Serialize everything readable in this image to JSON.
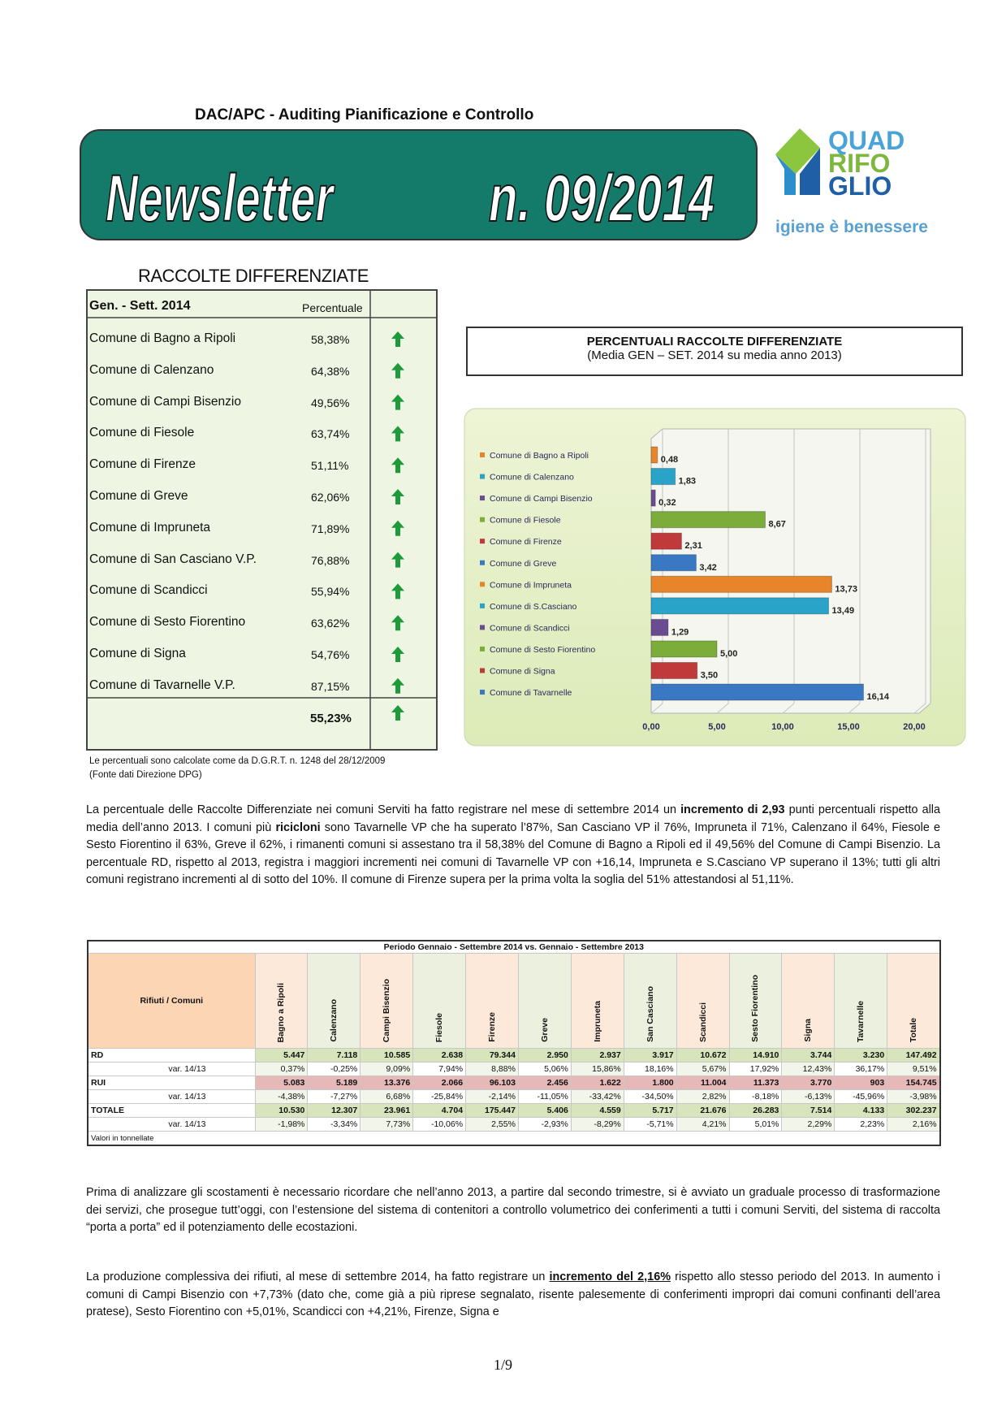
{
  "header": {
    "department": "DAC/APC - Auditing Pianificazione e Controllo",
    "newsletter": "Newsletter",
    "issue": "n. 09/2014",
    "logo": [
      "QUAD",
      "RIFO",
      "GLIO"
    ],
    "tagline": "igiene è benessere"
  },
  "rd_table": {
    "title": "RACCOLTE DIFFERENZIATE",
    "headers": [
      "Gen. - Sett. 2014",
      "Percentuale"
    ],
    "rows": [
      [
        "Comune di Bagno a Ripoli",
        "58,38%"
      ],
      [
        "Comune di Calenzano",
        "64,38%"
      ],
      [
        "Comune di Campi Bisenzio",
        "49,56%"
      ],
      [
        "Comune di Fiesole",
        "63,74%"
      ],
      [
        "Comune di Firenze",
        "51,11%"
      ],
      [
        "Comune di Greve",
        "62,06%"
      ],
      [
        "Comune di Impruneta",
        "71,89%"
      ],
      [
        "Comune di San Casciano V.P.",
        "76,88%"
      ],
      [
        "Comune di Scandicci",
        "55,94%"
      ],
      [
        "Comune di Sesto Fiorentino",
        "63,62%"
      ],
      [
        "Comune di Signa",
        "54,76%"
      ],
      [
        "Comune di Tavarnelle V.P.",
        "87,15%"
      ]
    ],
    "total": "55,23%",
    "notes": [
      "Le percentuali sono calcolate come da D.G.R.T. n. 1248 del 28/12/2009",
      "(Fonte dati Direzione DPG)"
    ]
  },
  "chart_data": {
    "type": "bar",
    "orientation": "horizontal",
    "title": "PERCENTUALI RACCOLTE DIFFERENZIATE",
    "subtitle": "(Media GEN – SET. 2014 su media anno 2013)",
    "categories": [
      "Comune di Bagno a Ripoli",
      "Comune di Calenzano",
      "Comune di Campi Bisenzio",
      "Comune di Fiesole",
      "Comune di Firenze",
      "Comune di Greve",
      "Comune di Impruneta",
      "Comune di S.Casciano",
      "Comune di Scandicci",
      "Comune di Sesto Fiorentino",
      "Comune di Signa",
      "Comune di Tavarnelle"
    ],
    "values": [
      0.48,
      1.83,
      0.32,
      8.67,
      2.31,
      3.42,
      13.73,
      13.49,
      1.29,
      5.0,
      3.5,
      16.14
    ],
    "value_labels": [
      "0,48",
      "1,83",
      "0,32",
      "8,67",
      "2,31",
      "3,42",
      "13,73",
      "13,49",
      "1,29",
      "5,00",
      "3,50",
      "16,14"
    ],
    "colors": [
      "#e8852a",
      "#2aa3c8",
      "#6a4c92",
      "#7cad3a",
      "#c0393b",
      "#3b78c4",
      "#e8852a",
      "#2aa3c8",
      "#6a4c92",
      "#7cad3a",
      "#c0393b",
      "#3b78c4"
    ],
    "xlim": [
      0,
      20
    ],
    "xticks": [
      {
        "value": 0,
        "label": "0,00"
      },
      {
        "value": 5,
        "label": "5,00"
      },
      {
        "value": 10,
        "label": "10,00"
      },
      {
        "value": 15,
        "label": "15,00"
      },
      {
        "value": 20,
        "label": "20,00"
      }
    ],
    "grid": true
  },
  "paragraphs": [
    [
      "La percentuale delle Raccolte Differenziate nei comuni Serviti ha fatto registrare nel mese di settembre 2014 un ",
      "incremento di 2,93",
      " punti percentuali rispetto alla media dell’anno 2013. I comuni più ",
      "ricicloni",
      " sono Tavarnelle VP che ha superato l’87%, San Casciano VP il 76%, Impruneta il 71%, Calenzano il 64%, Fiesole e Sesto Fiorentino il 63%, Greve il 62%, i rimanenti comuni si assestano tra il 58,38% del Comune di Bagno a Ripoli ed il 49,56% del Comune di Campi Bisenzio. La percentuale RD, rispetto al 2013, registra i maggiori incrementi nei comuni di Tavarnelle VP con +16,14, Impruneta e S.Casciano VP superano il 13%; tutti gli altri comuni registrano incrementi al di sotto del 10%. Il comune di Firenze supera per la prima volta la soglia del 51% attestandosi al 51,11%."
    ],
    [
      "Prima di analizzare gli scostamenti è necessario ricordare che nell’anno 2013, a partire dal secondo trimestre, si è avviato un graduale processo di trasformazione dei servizi, che prosegue tutt’oggi, con l’estensione del sistema di contenitori a controllo volumetrico dei conferimenti a tutti i comuni Serviti, del sistema di raccolta “porta a porta” ed il potenziamento delle ecostazioni."
    ],
    [
      "La produzione complessiva dei rifiuti, al mese di settembre 2014, ha fatto registrare un ",
      "incremento del 2,16%",
      " rispetto allo stesso periodo del 2013. In aumento i comuni di Campi Bisenzio con +7,73% (dato che, come già a più riprese segnalato, risente palesemente di conferimenti impropri dai comuni confinanti dell’area pratese), Sesto Fiorentino con +5,01%, Scandicci con +4,21%, Firenze, Signa e"
    ]
  ],
  "summary_table": {
    "title": "Periodo Gennaio - Settembre 2014 vs. Gennaio - Settembre 2013",
    "corner": "Rifiuti / Comuni",
    "columns": [
      "Bagno a Ripoli",
      "Calenzano",
      "Campi Bisenzio",
      "Fiesole",
      "Firenze",
      "Greve",
      "Impruneta",
      "San Casciano",
      "Scandicci",
      "Sesto Fiorentino",
      "Signa",
      "Tavarnelle",
      "Totale"
    ],
    "rows": [
      {
        "label": "RD",
        "values": [
          "5.447",
          "7.118",
          "10.585",
          "2.638",
          "79.344",
          "2.950",
          "2.937",
          "3.917",
          "10.672",
          "14.910",
          "3.744",
          "3.230",
          "147.492"
        ]
      },
      {
        "label": "var. 14/13",
        "values": [
          "0,37%",
          "-0,25%",
          "9,09%",
          "7,94%",
          "8,88%",
          "5,06%",
          "15,86%",
          "18,16%",
          "5,67%",
          "17,92%",
          "12,43%",
          "36,17%",
          "9,51%"
        ]
      },
      {
        "label": "RUI",
        "values": [
          "5.083",
          "5.189",
          "13.376",
          "2.066",
          "96.103",
          "2.456",
          "1.622",
          "1.800",
          "11.004",
          "11.373",
          "3.770",
          "903",
          "154.745"
        ]
      },
      {
        "label": "var. 14/13",
        "values": [
          "-4,38%",
          "-7,27%",
          "6,68%",
          "-25,84%",
          "-2,14%",
          "-11,05%",
          "-33,42%",
          "-34,50%",
          "2,82%",
          "-8,18%",
          "-6,13%",
          "-45,96%",
          "-3,98%"
        ]
      },
      {
        "label": "TOTALE",
        "values": [
          "10.530",
          "12.307",
          "23.961",
          "4.704",
          "175.447",
          "5.406",
          "4.559",
          "5.717",
          "21.676",
          "26.283",
          "7.514",
          "4.133",
          "302.237"
        ]
      },
      {
        "label": "var. 14/13",
        "values": [
          "-1,98%",
          "-3,34%",
          "7,73%",
          "-10,06%",
          "2,55%",
          "-2,93%",
          "-8,29%",
          "-5,71%",
          "4,21%",
          "5,01%",
          "2,29%",
          "2,23%",
          "2,16%"
        ]
      }
    ],
    "note": "Valori in tonnellate"
  },
  "footer": {
    "page": "1/9"
  }
}
